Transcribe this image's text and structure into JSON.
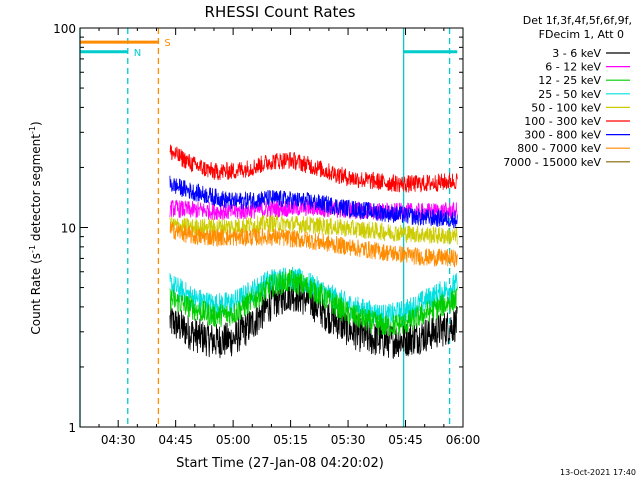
{
  "chart_data": {
    "type": "line",
    "title": "RHESSI Count Rates",
    "xlabel": "Start Time (27-Jan-08 04:20:02)",
    "ylabel_main": "Count Rate (s",
    "ylabel_sup1": "-1",
    "ylabel_mid": " detector segment",
    "ylabel_sup2": "-1",
    "ylabel_end": ")",
    "xlim": [
      "04:20:02",
      "06:00:00"
    ],
    "ylim": [
      1,
      100
    ],
    "yscale": "log",
    "x_tick_labels": [
      {
        "x": "04:30",
        "label": "04:30"
      },
      {
        "x": "04:45",
        "label": "04:45"
      },
      {
        "x": "05:00",
        "label": "05:00"
      },
      {
        "x": "05:15",
        "label": "05:15"
      },
      {
        "x": "05:30",
        "label": "05:30"
      },
      {
        "x": "05:45",
        "label": "05:45"
      },
      {
        "x": "06:00",
        "label": "06:00"
      }
    ],
    "y_tick_labels": [
      {
        "y": 1,
        "label": "1"
      },
      {
        "y": 10,
        "label": "10"
      },
      {
        "y": 100,
        "label": "100"
      }
    ],
    "legend_header": [
      "Det 1f,3f,4f,5f,6f,9f,",
      "FDecim 1, Att 0"
    ],
    "legend_position": "top-right-outside",
    "data_start": "04:43:30",
    "data_end": "05:58:30",
    "series": [
      {
        "name": "3 - 6 keV",
        "color": "#000000",
        "x": [
          "04:43:30",
          "04:50",
          "04:55",
          "05:00",
          "05:05",
          "05:10",
          "05:15",
          "05:20",
          "05:25",
          "05:30",
          "05:35",
          "05:40",
          "05:45",
          "05:50",
          "05:55",
          "05:58:30"
        ],
        "values": [
          3.4,
          2.9,
          2.7,
          2.75,
          3.3,
          4.2,
          4.7,
          4.3,
          3.6,
          3.1,
          2.8,
          2.7,
          2.75,
          2.9,
          3.1,
          3.3
        ]
      },
      {
        "name": "6 - 12 keV",
        "color": "#ff00ff",
        "x": [
          "04:43:30",
          "04:50",
          "05:00",
          "05:10",
          "05:20",
          "05:30",
          "05:40",
          "05:50",
          "05:58:30"
        ],
        "values": [
          12.5,
          12.2,
          12.0,
          12.4,
          12.6,
          12.2,
          12.0,
          12.0,
          12.1
        ]
      },
      {
        "name": "12 - 25 keV",
        "color": "#00cc00",
        "x": [
          "04:43:30",
          "04:50",
          "04:55",
          "05:00",
          "05:05",
          "05:10",
          "05:15",
          "05:20",
          "05:25",
          "05:30",
          "05:35",
          "05:40",
          "05:45",
          "05:50",
          "05:55",
          "05:58:30"
        ],
        "values": [
          4.4,
          3.9,
          3.6,
          3.7,
          4.3,
          5.1,
          5.4,
          5.0,
          4.3,
          3.7,
          3.4,
          3.2,
          3.3,
          3.7,
          4.1,
          4.4
        ]
      },
      {
        "name": "25 - 50 keV",
        "color": "#00e0e0",
        "x": [
          "04:43:30",
          "04:50",
          "04:55",
          "05:00",
          "05:05",
          "05:10",
          "05:15",
          "05:20",
          "05:25",
          "05:30",
          "05:35",
          "05:40",
          "05:45",
          "05:50",
          "05:55",
          "05:58:30"
        ],
        "values": [
          5.2,
          4.4,
          4.1,
          4.2,
          4.8,
          5.5,
          5.6,
          5.2,
          4.6,
          4.1,
          3.8,
          3.6,
          3.8,
          4.3,
          4.8,
          5.2
        ]
      },
      {
        "name": "50 - 100 keV",
        "color": "#cccc00",
        "x": [
          "04:43:30",
          "04:50",
          "05:00",
          "05:10",
          "05:20",
          "05:30",
          "05:40",
          "05:50",
          "05:58:30"
        ],
        "values": [
          10.3,
          10.0,
          10.1,
          10.5,
          10.3,
          9.9,
          9.5,
          9.2,
          9.0
        ]
      },
      {
        "name": "100 - 300 keV",
        "color": "#ff0000",
        "x": [
          "04:43:30",
          "04:50",
          "04:55",
          "05:00",
          "05:05",
          "05:10",
          "05:15",
          "05:20",
          "05:25",
          "05:30",
          "05:35",
          "05:40",
          "05:45",
          "05:50",
          "05:55",
          "05:58:30"
        ],
        "values": [
          24,
          20.5,
          19.0,
          19.2,
          20.0,
          21.5,
          21.8,
          20.5,
          19.0,
          17.8,
          17.2,
          16.8,
          16.5,
          16.6,
          16.9,
          17.2
        ]
      },
      {
        "name": "300 - 800 keV",
        "color": "#0000ff",
        "x": [
          "04:43:30",
          "04:50",
          "05:00",
          "05:10",
          "05:20",
          "05:30",
          "05:40",
          "05:50",
          "05:58:30"
        ],
        "values": [
          16.5,
          15.0,
          13.5,
          14.0,
          13.5,
          12.5,
          11.8,
          11.2,
          11.0
        ]
      },
      {
        "name": "800 - 7000 keV",
        "color": "#ff8c00",
        "x": [
          "04:43:30",
          "04:50",
          "05:00",
          "05:10",
          "05:20",
          "05:30",
          "05:40",
          "05:50",
          "05:58:30"
        ],
        "values": [
          9.8,
          9.0,
          8.9,
          9.0,
          8.6,
          8.0,
          7.5,
          7.1,
          7.0
        ]
      },
      {
        "name": "7000 - 15000 keV",
        "color": "#806600",
        "x": [],
        "values": []
      }
    ],
    "vertical_markers": [
      {
        "x": "04:20:02",
        "color": "#00cccc",
        "style": "solid"
      },
      {
        "x": "04:32:30",
        "color": "#00cccc",
        "style": "dashed"
      },
      {
        "x": "04:40:30",
        "color": "#ff8c00",
        "style": "dashed"
      },
      {
        "x": "05:44:30",
        "color": "#00cccc",
        "style": "solid"
      },
      {
        "x": "05:56:30",
        "color": "#00cccc",
        "style": "dashed"
      }
    ],
    "flag_bars": [
      {
        "label": "S",
        "color": "#ff8c00",
        "x_start": "04:20:02",
        "x_end": "04:40:30",
        "y": 85
      },
      {
        "label": "N",
        "color": "#00cccc",
        "x_start": "04:20:02",
        "x_end": "04:32:30",
        "y": 76
      },
      {
        "label": "",
        "color": "#00cccc",
        "x_start": "05:44:30",
        "x_end": "05:58:30",
        "y": 76
      }
    ]
  },
  "footer_timestamp": "13-Oct-2021 17:40",
  "colors": {
    "background": "#ffffff",
    "axes": "#000000"
  }
}
